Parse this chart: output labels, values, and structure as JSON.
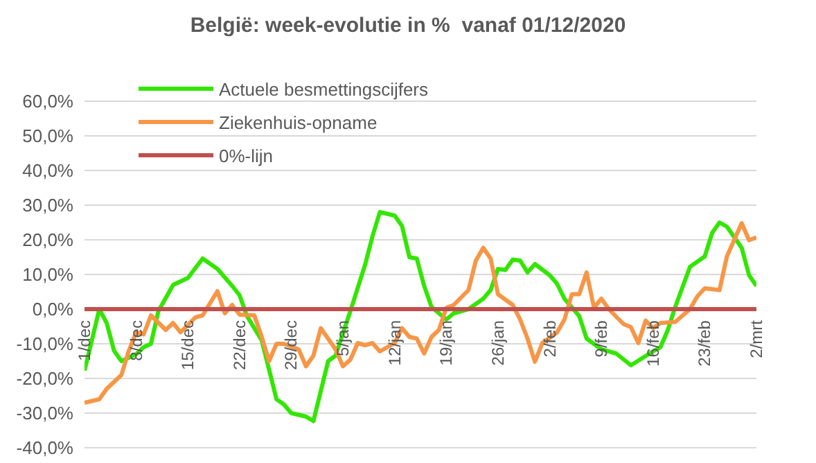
{
  "chart_data": {
    "type": "line",
    "title": "België: week-evolutie in %  vanaf 01/12/2020",
    "xlim": [
      "2020-12-01",
      "2021-03-02"
    ],
    "xticks": [
      {
        "value": "2020-12-01",
        "label": "1/dec"
      },
      {
        "value": "2020-12-08",
        "label": "8/dec"
      },
      {
        "value": "2020-12-15",
        "label": "15/dec"
      },
      {
        "value": "2020-12-22",
        "label": "22/dec"
      },
      {
        "value": "2020-12-29",
        "label": "29/dec"
      },
      {
        "value": "2021-01-05",
        "label": "5/jan"
      },
      {
        "value": "2021-01-12",
        "label": "12/jan"
      },
      {
        "value": "2021-01-19",
        "label": "19/jan"
      },
      {
        "value": "2021-01-26",
        "label": "26/jan"
      },
      {
        "value": "2021-02-02",
        "label": "2/feb"
      },
      {
        "value": "2021-02-09",
        "label": "9/feb"
      },
      {
        "value": "2021-02-16",
        "label": "16/feb"
      },
      {
        "value": "2021-02-23",
        "label": "23/feb"
      },
      {
        "value": "2021-03-02",
        "label": "2/mrt"
      }
    ],
    "ylim": [
      -40,
      60
    ],
    "yticks": [
      {
        "value": -40,
        "label": "-40,0%"
      },
      {
        "value": -30,
        "label": "-30,0%"
      },
      {
        "value": -20,
        "label": "-20,0%"
      },
      {
        "value": -10,
        "label": "-10,0%"
      },
      {
        "value": 0,
        "label": "0,0%"
      },
      {
        "value": 10,
        "label": "10,0%"
      },
      {
        "value": 20,
        "label": "20,0%"
      },
      {
        "value": 30,
        "label": "30,0%"
      },
      {
        "value": 40,
        "label": "40,0%"
      },
      {
        "value": 50,
        "label": "50,0%"
      },
      {
        "value": 60,
        "label": "60,0%"
      }
    ],
    "grid": "y",
    "legend": "top left",
    "marker": "none",
    "line_style": "solid",
    "series": [
      {
        "name": "Actuele besmettingscijfers",
        "color": "#33e600",
        "x": [
          "2020-12-01",
          "2020-12-02",
          "2020-12-03",
          "2020-12-04",
          "2020-12-05",
          "2020-12-06",
          "2020-12-08",
          "2020-12-09",
          "2020-12-10",
          "2020-12-11",
          "2020-12-13",
          "2020-12-15",
          "2020-12-17",
          "2020-12-19",
          "2020-12-21",
          "2020-12-22",
          "2020-12-23",
          "2020-12-25",
          "2020-12-27",
          "2020-12-28",
          "2020-12-29",
          "2020-12-31",
          "2021-01-01",
          "2021-01-03",
          "2021-01-04",
          "2021-01-06",
          "2021-01-08",
          "2021-01-09",
          "2021-01-10",
          "2021-01-12",
          "2021-01-13",
          "2021-01-14",
          "2021-01-15",
          "2021-01-16",
          "2021-01-17",
          "2021-01-19",
          "2021-01-20",
          "2021-01-22",
          "2021-01-24",
          "2021-01-25",
          "2021-01-26",
          "2021-01-27",
          "2021-01-28",
          "2021-01-29",
          "2021-01-30",
          "2021-01-31",
          "2021-02-02",
          "2021-02-03",
          "2021-02-04",
          "2021-02-06",
          "2021-02-07",
          "2021-02-09",
          "2021-02-11",
          "2021-02-13",
          "2021-02-16",
          "2021-02-17",
          "2021-02-18",
          "2021-02-19",
          "2021-02-21",
          "2021-02-23",
          "2021-02-24",
          "2021-02-25",
          "2021-02-26",
          "2021-02-28",
          "2021-03-01",
          "2021-03-02"
        ],
        "values": [
          -17.7,
          -9,
          0,
          -4,
          -12,
          -15,
          -13,
          -11,
          -10,
          -0.6,
          7,
          9,
          14.6,
          11.6,
          6.7,
          4,
          -2,
          -9,
          -26,
          -27.5,
          -30,
          -31,
          -32.3,
          -15,
          -13.4,
          -0.6,
          12.8,
          21,
          28,
          27,
          24,
          15,
          14.6,
          6.7,
          0.6,
          -3,
          -1.2,
          0,
          3,
          5.5,
          11.6,
          11.3,
          14.3,
          14,
          10.6,
          13,
          9.8,
          7.3,
          3,
          -2,
          -8.5,
          -11.6,
          -12.8,
          -16.2,
          -12.2,
          -11,
          -6,
          0.6,
          12.2,
          15.2,
          22,
          25,
          23.8,
          17.7,
          9.8,
          6.7
        ]
      },
      {
        "name": "Ziekenhuis-opname",
        "color": "#f79646",
        "x": [
          "2020-12-01",
          "2020-12-03",
          "2020-12-04",
          "2020-12-06",
          "2020-12-07",
          "2020-12-08",
          "2020-12-09",
          "2020-12-10",
          "2020-12-12",
          "2020-12-13",
          "2020-12-14",
          "2020-12-16",
          "2020-12-17",
          "2020-12-19",
          "2020-12-20",
          "2020-12-21",
          "2020-12-22",
          "2020-12-24",
          "2020-12-25",
          "2020-12-26",
          "2020-12-27",
          "2020-12-28",
          "2020-12-30",
          "2020-12-31",
          "2021-01-01",
          "2021-01-02",
          "2021-01-04",
          "2021-01-05",
          "2021-01-06",
          "2021-01-07",
          "2021-01-08",
          "2021-01-09",
          "2021-01-10",
          "2021-01-12",
          "2021-01-13",
          "2021-01-14",
          "2021-01-15",
          "2021-01-16",
          "2021-01-17",
          "2021-01-18",
          "2021-01-19",
          "2021-01-20",
          "2021-01-22",
          "2021-01-23",
          "2021-01-24",
          "2021-01-25",
          "2021-01-26",
          "2021-01-28",
          "2021-01-29",
          "2021-01-30",
          "2021-01-31",
          "2021-02-01",
          "2021-02-03",
          "2021-02-04",
          "2021-02-05",
          "2021-02-06",
          "2021-02-07",
          "2021-02-08",
          "2021-02-09",
          "2021-02-10",
          "2021-02-12",
          "2021-02-13",
          "2021-02-14",
          "2021-02-15",
          "2021-02-16",
          "2021-02-17",
          "2021-02-19",
          "2021-02-21",
          "2021-02-22",
          "2021-02-23",
          "2021-02-25",
          "2021-02-26",
          "2021-02-28",
          "2021-03-01",
          "2021-03-02"
        ],
        "values": [
          -27,
          -26,
          -23,
          -19,
          -12,
          -6.7,
          -7.3,
          -1.8,
          -6,
          -4,
          -6.7,
          -2.4,
          -1.8,
          5.2,
          -1.2,
          1.2,
          -1.6,
          -1.8,
          -8,
          -15,
          -10,
          -10,
          -11.6,
          -16.5,
          -13.4,
          -5.5,
          -11.6,
          -16.5,
          -14.6,
          -9.8,
          -10.4,
          -9.8,
          -12.2,
          -9.8,
          -5.5,
          -8,
          -8.5,
          -12.8,
          -8,
          -6,
          0.4,
          1.2,
          5.5,
          14,
          17.7,
          14.6,
          4.3,
          1.2,
          -3,
          -8.5,
          -15.2,
          -9.8,
          -6.7,
          -3,
          4.3,
          4.3,
          10.6,
          0.4,
          3,
          0,
          -4.3,
          -5.2,
          -9.8,
          -3.3,
          -5.5,
          -4,
          -3.7,
          0,
          3.7,
          6,
          5.5,
          15.2,
          24.8,
          19.9,
          20.7
        ]
      },
      {
        "name": "0%-lijn",
        "color": "#c0504d",
        "x": [
          "2020-12-01",
          "2021-03-02"
        ],
        "values": [
          0,
          0
        ]
      }
    ]
  }
}
